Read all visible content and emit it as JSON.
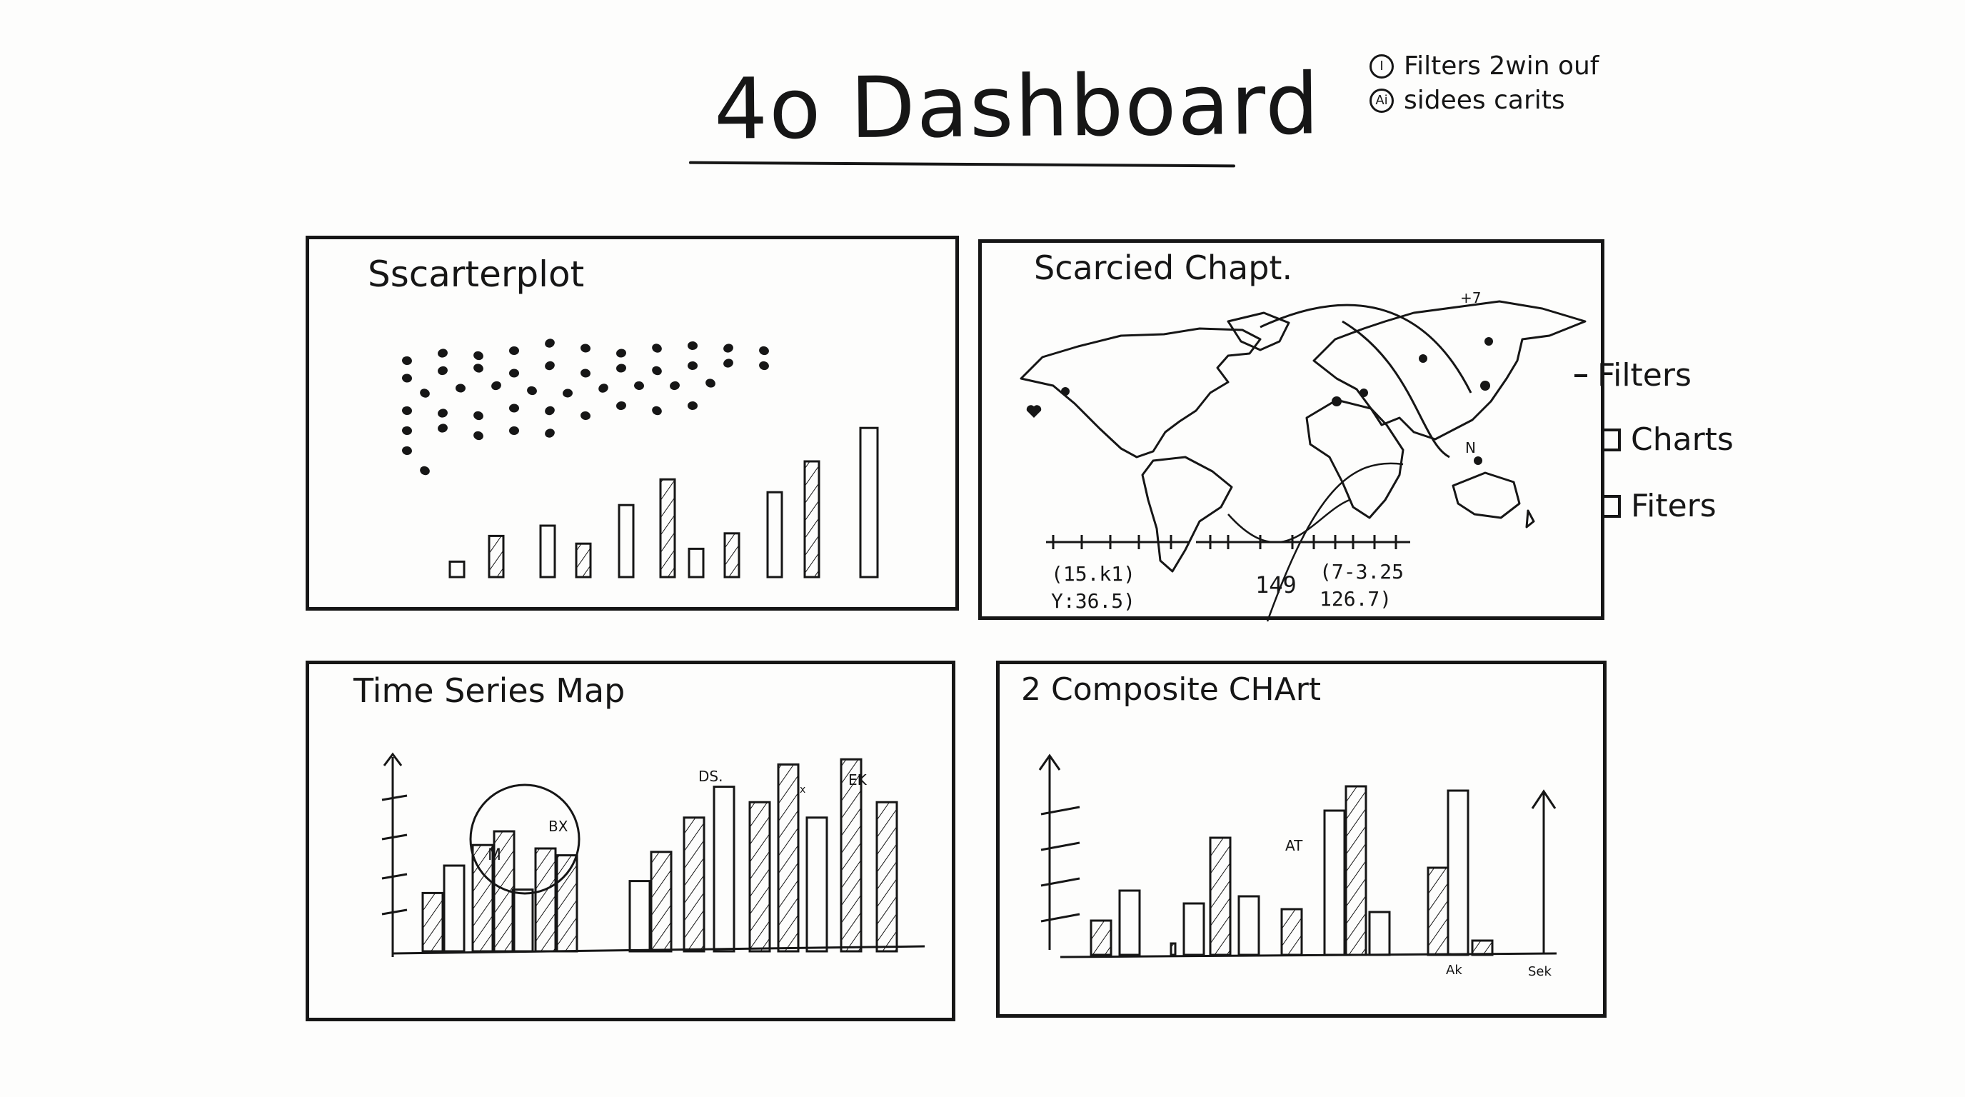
{
  "header": {
    "title": "4o Dashboard"
  },
  "legend": [
    {
      "icon": "info-circle-icon",
      "mark": "I",
      "label": "Filters 2win ouf"
    },
    {
      "icon": "ai-circle-icon",
      "mark": "Ai",
      "label": "sidees carits"
    }
  ],
  "panels": {
    "scatter": {
      "title": "Sscarterplot"
    },
    "map": {
      "title": "Scarcied Chapt.",
      "corner_mark": "+7",
      "marker_label": "N",
      "readouts": {
        "left": [
          "(15.k1)",
          "Y:36.5)"
        ],
        "middle": "149",
        "right": [
          "(7-3.25",
          "126.7)"
        ]
      }
    },
    "timeseries": {
      "title": "Time Series Map",
      "labels": [
        "M",
        "BX",
        "DS.",
        "x",
        "EK"
      ]
    },
    "composite": {
      "title": "2 Composite CHArt",
      "labels": [
        "AT",
        "Ak",
        "Sek"
      ]
    }
  },
  "sidebar": {
    "heading": "Filters",
    "items": [
      {
        "label": "Charts",
        "checked": false
      },
      {
        "label": "Fiters",
        "checked": false
      }
    ]
  },
  "chart_data": [
    {
      "type": "scatter",
      "title": "Sscarterplot",
      "points": [
        [
          1,
          9
        ],
        [
          2,
          9.3
        ],
        [
          3,
          9.2
        ],
        [
          4,
          9.4
        ],
        [
          5,
          9.7
        ],
        [
          6,
          9.5
        ],
        [
          7,
          9.3
        ],
        [
          8,
          9.5
        ],
        [
          9,
          9.6
        ],
        [
          10,
          9.5
        ],
        [
          11,
          9.4
        ],
        [
          1,
          8.3
        ],
        [
          2,
          8.6
        ],
        [
          3,
          8.7
        ],
        [
          4,
          8.5
        ],
        [
          5,
          8.8
        ],
        [
          6,
          8.5
        ],
        [
          7,
          8.7
        ],
        [
          8,
          8.6
        ],
        [
          9,
          8.8
        ],
        [
          10,
          8.9
        ],
        [
          11,
          8.8
        ],
        [
          1.5,
          7.7
        ],
        [
          2.5,
          7.9
        ],
        [
          3.5,
          8
        ],
        [
          4.5,
          7.8
        ],
        [
          5.5,
          7.7
        ],
        [
          6.5,
          7.9
        ],
        [
          7.5,
          8
        ],
        [
          8.5,
          8
        ],
        [
          9.5,
          8.1
        ],
        [
          1,
          7
        ],
        [
          2,
          6.9
        ],
        [
          3,
          6.8
        ],
        [
          4,
          7.1
        ],
        [
          5,
          7
        ],
        [
          6,
          6.8
        ],
        [
          7,
          7.2
        ],
        [
          8,
          7
        ],
        [
          9,
          7.2
        ],
        [
          1,
          6.2
        ],
        [
          2,
          6.3
        ],
        [
          3,
          6
        ],
        [
          4,
          6.2
        ],
        [
          5,
          6.1
        ],
        [
          1,
          5.4
        ],
        [
          1.5,
          4.6
        ]
      ],
      "bars": [
        0.6,
        1.6,
        2,
        1.3,
        2.8,
        3.8,
        1.1,
        1.7,
        3.3,
        4.5,
        5.8
      ]
    },
    {
      "type": "bar",
      "title": "Time Series Map",
      "values": [
        3.4,
        5.0,
        6.2,
        7.0,
        3.6,
        6.0,
        5.6,
        4.1,
        5.8,
        7.8,
        9.6,
        8.7,
        10.9,
        7.8,
        11.2,
        8.7
      ]
    },
    {
      "type": "bar",
      "title": "2 Composite CHArt",
      "values": [
        2.4,
        4.5,
        0.8,
        3.6,
        8.2,
        4.1,
        3.2,
        10.1,
        11.8,
        3.0,
        6.1,
        11.5,
        1.0
      ]
    }
  ]
}
